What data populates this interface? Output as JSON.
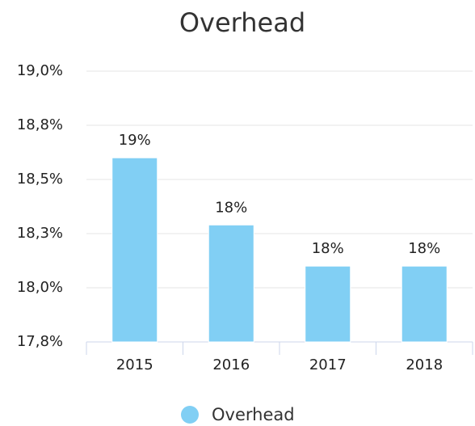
{
  "chart_data": {
    "type": "bar",
    "title": "Overhead",
    "categories": [
      "2015",
      "2016",
      "2017",
      "2018"
    ],
    "series": [
      {
        "name": "Overhead",
        "color": "#81cff4",
        "values": [
          18.6,
          18.29,
          18.1,
          18.1
        ],
        "value_labels": [
          "19%",
          "18%",
          "18%",
          "18%"
        ]
      }
    ],
    "ylim": [
      17.75,
      19.0
    ],
    "yticks": [
      {
        "value": 17.75,
        "label": "17,8%"
      },
      {
        "value": 18.0,
        "label": "18,0%"
      },
      {
        "value": 18.25,
        "label": "18,3%"
      },
      {
        "value": 18.5,
        "label": "18,5%"
      },
      {
        "value": 18.75,
        "label": "18,8%"
      },
      {
        "value": 19.0,
        "label": "19,0%"
      }
    ],
    "grid": true,
    "legend": "bottom"
  }
}
